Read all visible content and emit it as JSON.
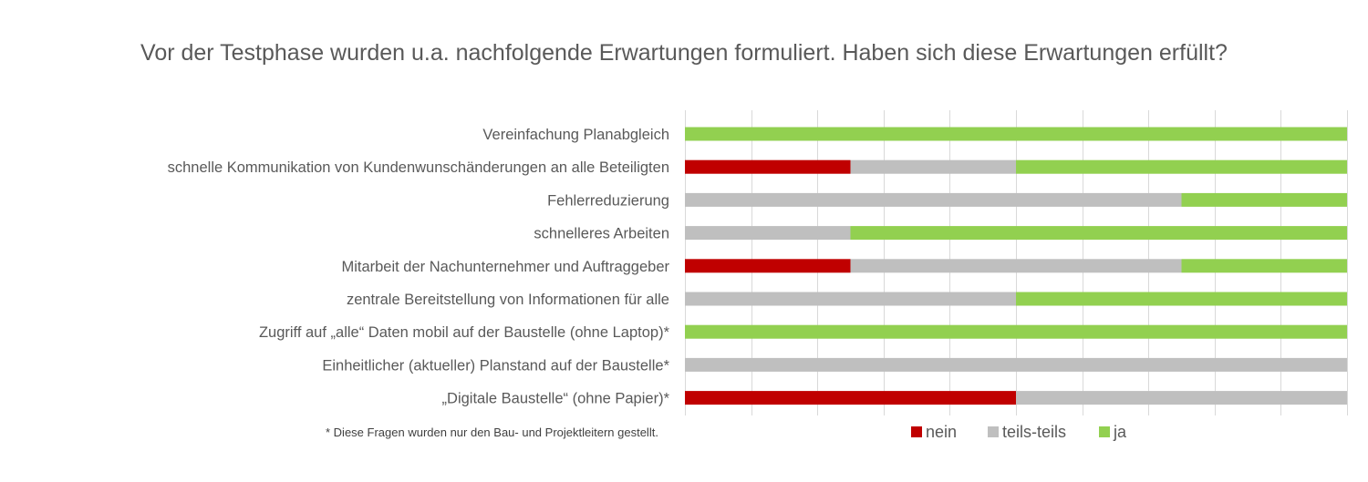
{
  "title": "Vor der Testphase wurden u.a. nachfolgende Erwartungen formuliert. Haben sich diese Erwartungen erfüllt?",
  "footnote": "* Diese Fragen wurden nur den Bau- und Projektleitern gestellt.",
  "colors": {
    "nein": "#c00000",
    "teils-teils": "#bfbfbf",
    "ja": "#92d050",
    "grid": "#d9d9d9"
  },
  "chart_data": {
    "type": "bar",
    "orientation": "horizontal",
    "stacked": "percent",
    "title": "Vor der Testphase wurden u.a. nachfolgende Erwartungen formuliert. Haben sich diese Erwartungen erfüllt?",
    "categories": [
      "Vereinfachung Planabgleich",
      "schnelle Kommunikation von Kundenwunschänderungen an alle Beteiligten",
      "Fehlerreduzierung",
      "schnelleres Arbeiten",
      "Mitarbeit der Nachunternehmer und Auftraggeber",
      "zentrale Bereitstellung von Informationen für alle",
      "Zugriff auf „alle“ Daten mobil auf der Baustelle (ohne Laptop)*",
      "Einheitlicher (aktueller) Planstand auf der Baustelle*",
      "„Digitale Baustelle“ (ohne Papier)*"
    ],
    "series": [
      {
        "name": "nein",
        "values": [
          0,
          25,
          0,
          0,
          25,
          0,
          0,
          0,
          50
        ]
      },
      {
        "name": "teils-teils",
        "values": [
          0,
          25,
          75,
          25,
          50,
          50,
          0,
          100,
          50
        ]
      },
      {
        "name": "ja",
        "values": [
          100,
          50,
          25,
          75,
          25,
          50,
          100,
          0,
          0
        ]
      }
    ],
    "xlim": [
      0,
      100
    ],
    "grid": true,
    "legend": "bottom"
  }
}
